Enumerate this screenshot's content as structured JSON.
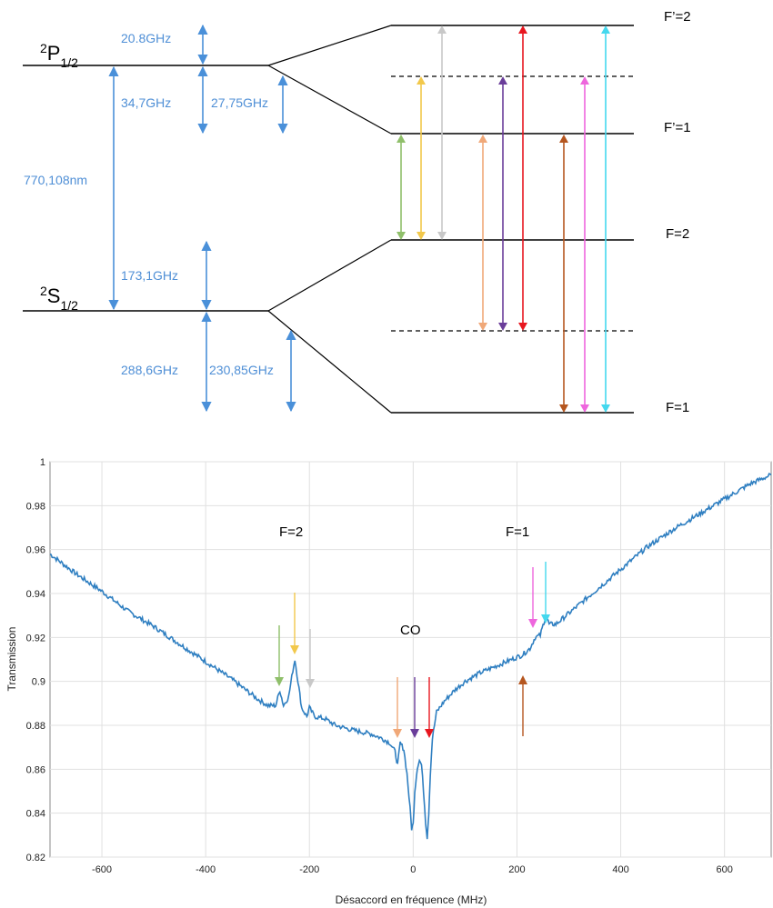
{
  "diagram": {
    "upper_term": {
      "base": "P",
      "sup": "2",
      "sub": "1/2"
    },
    "lower_term": {
      "base": "S",
      "sup": "2",
      "sub": "1/2"
    },
    "labels": {
      "p_upper_gap": "20.8GHz",
      "p_lower_gap": "34,7GHz",
      "p_split": "27,75GHz",
      "optical": "770,108nm",
      "s_upper_gap": "173,1GHz",
      "s_lower_gap": "288,6GHz",
      "s_split": "230,85GHz"
    },
    "levels": {
      "fp2": "F’=2",
      "fp1": "F’=1",
      "f2": "F=2",
      "f1": "F=1"
    },
    "transition_colors": {
      "green": "#8fbf6a",
      "yellow": "#f2c84b",
      "gray": "#c8c8c8",
      "orange": "#f0a878",
      "purple": "#6a3d9a",
      "red": "#e8161f",
      "brown": "#b5561f",
      "pink": "#ee66dd",
      "cyan": "#44d8ee"
    }
  },
  "chart_data": {
    "type": "line",
    "xlabel": "Désaccord en fréquence (MHz)",
    "ylabel": "Transmission",
    "xlim": [
      -700,
      690
    ],
    "ylim": [
      0.82,
      1.0
    ],
    "xticks": [
      -600,
      -400,
      -200,
      0,
      200,
      400,
      600
    ],
    "yticks": [
      0.82,
      0.84,
      0.86,
      0.88,
      0.9,
      0.92,
      0.94,
      0.96,
      0.98,
      1
    ],
    "ytick_labels": [
      "0.82",
      "0.84",
      "0.86",
      "0.88",
      "0.9",
      "0.92",
      "0.94",
      "0.96",
      "0.98",
      "1"
    ],
    "grid": true,
    "line_color": "#2f7fc1",
    "series": [
      {
        "x": [
          -700,
          -650,
          -600,
          -550,
          -500,
          -450,
          -400,
          -350,
          -300,
          -280,
          -265,
          -257,
          -250,
          -240,
          -232,
          -228,
          -222,
          -215,
          -205,
          -200,
          -190,
          -170,
          -150,
          -120,
          -100,
          -80,
          -60,
          -45,
          -35,
          -30,
          -25,
          -18,
          -12,
          -6,
          -3,
          0,
          3,
          8,
          12,
          16,
          20,
          24,
          27,
          30,
          33,
          37,
          45,
          60,
          80,
          100,
          130,
          160,
          190,
          210,
          225,
          235,
          245,
          252,
          256,
          262,
          275,
          300,
          350,
          400,
          450,
          500,
          550,
          600,
          650,
          690
        ],
        "y": [
          0.958,
          0.949,
          0.941,
          0.932,
          0.925,
          0.917,
          0.909,
          0.901,
          0.892,
          0.889,
          0.889,
          0.896,
          0.889,
          0.893,
          0.905,
          0.91,
          0.9,
          0.888,
          0.884,
          0.888,
          0.884,
          0.883,
          0.88,
          0.878,
          0.877,
          0.876,
          0.874,
          0.872,
          0.868,
          0.862,
          0.872,
          0.869,
          0.858,
          0.842,
          0.833,
          0.835,
          0.85,
          0.861,
          0.864,
          0.862,
          0.85,
          0.836,
          0.829,
          0.84,
          0.858,
          0.874,
          0.886,
          0.891,
          0.896,
          0.9,
          0.904,
          0.907,
          0.91,
          0.912,
          0.915,
          0.92,
          0.921,
          0.927,
          0.93,
          0.926,
          0.926,
          0.931,
          0.941,
          0.951,
          0.961,
          0.969,
          0.976,
          0.983,
          0.99,
          0.994
        ]
      }
    ],
    "annotations": {
      "f2": "F=2",
      "co": "CO",
      "f1": "F=1"
    }
  }
}
